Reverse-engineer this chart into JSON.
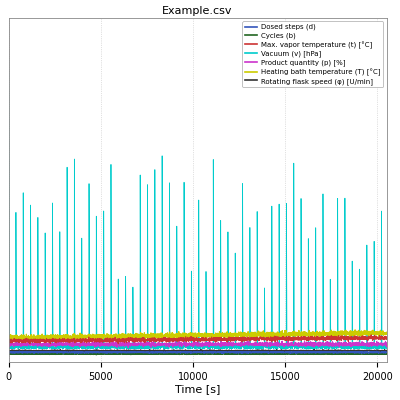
{
  "title": "Example.csv",
  "xlabel": "Time [s]",
  "xlim": [
    0,
    20500
  ],
  "ylim": [
    -2,
    105
  ],
  "xticks": [
    0,
    5000,
    10000,
    15000,
    20000
  ],
  "yticks": [],
  "background_color": "#ffffff",
  "plot_bg_color": "#ffffff",
  "grid_color": "#aaaaaa",
  "legend_entries": [
    {
      "label": "Dosed steps (d)",
      "color": "#3355bb"
    },
    {
      "label": "Cycles (b)",
      "color": "#226622"
    },
    {
      "label": "Max. vapor temperature (t) [°C]",
      "color": "#cc3333"
    },
    {
      "label": "Vacuum (v) [hPa]",
      "color": "#00cccc"
    },
    {
      "label": "Product quantity (p) [%]",
      "color": "#cc33cc"
    },
    {
      "label": "Heating bath temperature (T) [°C]",
      "color": "#cccc00"
    },
    {
      "label": "Rotating flask speed (φ) [U/min]",
      "color": "#333333"
    }
  ],
  "n_points": 3000,
  "x_max": 20500,
  "spike_period": 400,
  "spike_height_max": 60,
  "spike_height_initial": 90,
  "signal_base_vacuum": 2,
  "signal_base_vapor": 4.5,
  "signal_base_bath": 5.5,
  "signal_base_dosed": 1.0,
  "signal_base_cycles": 0.5,
  "signal_base_product": 3.5,
  "signal_base_flask": 1.5
}
